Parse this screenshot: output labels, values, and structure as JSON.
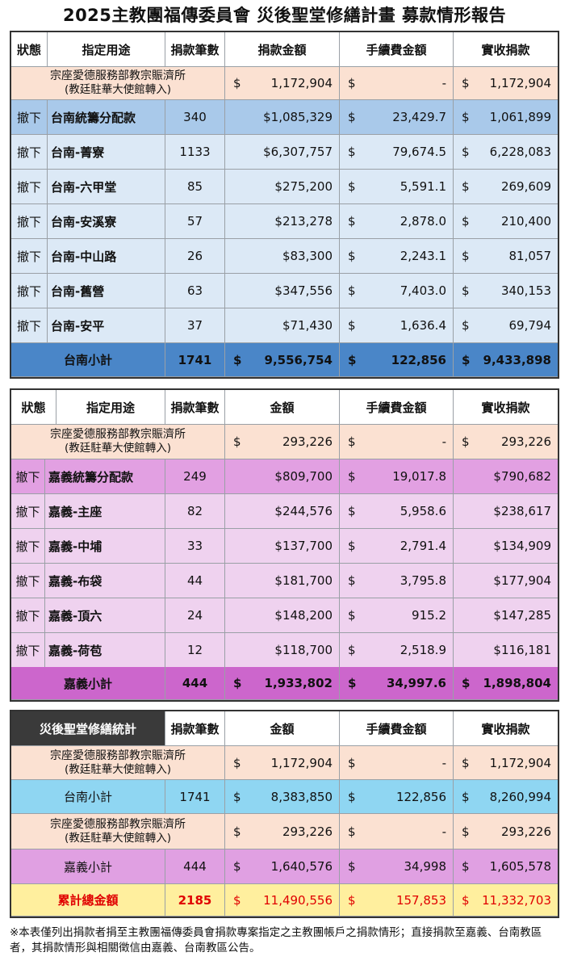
{
  "title": "2025主教團福傳委員會 災後聖堂修繕計畫 募款情形報告",
  "tainan": {
    "headers": [
      "狀態",
      "指定用途",
      "捐款筆數",
      "捐款金額",
      "手續費金額",
      "實收捐款"
    ],
    "special": {
      "l1": "宗座愛德服務部教宗賑濟所",
      "l2": "(教廷駐華大使館轉入)",
      "amt": "1,172,904",
      "fee": "-",
      "net": "1,172,904"
    },
    "rows": [
      {
        "status": "撤下",
        "purpose": "台南統籌分配款",
        "count": "340",
        "amt": "$1,085,329",
        "fee": "23,429.7",
        "net": "1,061,899"
      },
      {
        "status": "撤下",
        "purpose": "台南-菁寮",
        "count": "1133",
        "amt": "$6,307,757",
        "fee": "79,674.5",
        "net": "6,228,083"
      },
      {
        "status": "撤下",
        "purpose": "台南-六甲堂",
        "count": "85",
        "amt": "$275,200",
        "fee": "5,591.1",
        "net": "269,609"
      },
      {
        "status": "撤下",
        "purpose": "台南-安溪寮",
        "count": "57",
        "amt": "$213,278",
        "fee": "2,878.0",
        "net": "210,400"
      },
      {
        "status": "撤下",
        "purpose": "台南-中山路",
        "count": "26",
        "amt": "$83,300",
        "fee": "2,243.1",
        "net": "81,057"
      },
      {
        "status": "撤下",
        "purpose": "台南-舊營",
        "count": "63",
        "amt": "$347,556",
        "fee": "7,403.0",
        "net": "340,153"
      },
      {
        "status": "撤下",
        "purpose": "台南-安平",
        "count": "37",
        "amt": "$71,430",
        "fee": "1,636.4",
        "net": "69,794"
      }
    ],
    "subtotal": {
      "label": "台南小計",
      "count": "1741",
      "amt": "9,556,754",
      "fee": "122,856",
      "net": "9,433,898"
    }
  },
  "chiayi": {
    "headers": [
      "狀態",
      "指定用途",
      "捐款筆數",
      "金額",
      "手續費金額",
      "實收捐款"
    ],
    "special": {
      "l1": "宗座愛德服務部教宗賑濟所",
      "l2": "(教廷駐華大使館轉入)",
      "amt": "293,226",
      "fee": "-",
      "net": "293,226"
    },
    "rows": [
      {
        "status": "撤下",
        "purpose": "嘉義統籌分配款",
        "count": "249",
        "amt": "$809,700",
        "fee": "19,017.8",
        "net": "$790,682"
      },
      {
        "status": "撤下",
        "purpose": "嘉義-主座",
        "count": "82",
        "amt": "$244,576",
        "fee": "5,958.6",
        "net": "$238,617"
      },
      {
        "status": "撤下",
        "purpose": "嘉義-中埔",
        "count": "33",
        "amt": "$137,700",
        "fee": "2,791.4",
        "net": "$134,909"
      },
      {
        "status": "撤下",
        "purpose": "嘉義-布袋",
        "count": "44",
        "amt": "$181,700",
        "fee": "3,795.8",
        "net": "$177,904"
      },
      {
        "status": "撤下",
        "purpose": "嘉義-頂六",
        "count": "24",
        "amt": "$148,200",
        "fee": "915.2",
        "net": "$147,285"
      },
      {
        "status": "撤下",
        "purpose": "嘉義-荷苞",
        "count": "12",
        "amt": "$118,700",
        "fee": "2,518.9",
        "net": "$116,181"
      }
    ],
    "subtotal": {
      "label": "嘉義小計",
      "count": "444",
      "amt": "1,933,802",
      "fee": "34,997.6",
      "net": "1,898,804"
    }
  },
  "summary": {
    "headers": [
      "災後聖堂修繕統計",
      "捐款筆數",
      "金額",
      "手續費金額",
      "實收捐款"
    ],
    "special1": {
      "l1": "宗座愛德服務部教宗賑濟所",
      "l2": "(教廷駐華大使館轉入)",
      "amt": "1,172,904",
      "fee": "-",
      "net": "1,172,904"
    },
    "tainan": {
      "label": "台南小計",
      "count": "1741",
      "amt": "8,383,850",
      "fee": "122,856",
      "net": "8,260,994"
    },
    "special2": {
      "l1": "宗座愛德服務部教宗賑濟所",
      "l2": "(教廷駐華大使館轉入)",
      "amt": "293,226",
      "fee": "-",
      "net": "293,226"
    },
    "chiayi": {
      "label": "嘉義小計",
      "count": "444",
      "amt": "1,640,576",
      "fee": "34,998",
      "net": "1,605,578"
    },
    "total": {
      "label": "累計總金額",
      "count": "2185",
      "amt": "11,490,556",
      "fee": "157,853",
      "net": "11,332,703"
    }
  },
  "currency": "$",
  "colors": {
    "tainan_row": "#dce9f6",
    "tainan_first": "#a9c9ea",
    "tainan_sub": "#4a86c8",
    "chiayi_row": "#efd2ef",
    "chiayi_first": "#e2a0e2",
    "chiayi_sub": "#cc66cc",
    "special": "#fbe1d2",
    "summary_tainan": "#8fd6f2",
    "summary_chiayi": "#e0a0e2",
    "total": "#ffef9e",
    "dark_header": "#3a3a3a"
  },
  "note": "※本表僅列出捐款者捐至主教團福傳委員會捐款專案指定之主教團帳戶之捐款情形；直接捐款至嘉義、台南教區者，其捐款情形與相關徵信由嘉義、台南教區公告。"
}
